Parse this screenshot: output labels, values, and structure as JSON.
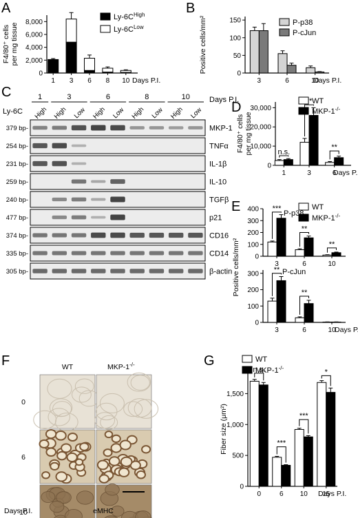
{
  "panels": {
    "A": "A",
    "B": "B",
    "C": "C",
    "D": "D",
    "E": "E",
    "F": "F",
    "G": "G"
  },
  "colors": {
    "black": "#000000",
    "white": "#ffffff",
    "light_gray": "#d4d4d4",
    "dark_gray": "#7a7a7a",
    "gel_bg": "#ececec",
    "band": "#444444",
    "ihc_light": "#e8e2d6",
    "ihc_brown": "#7a5634"
  },
  "chart_data": [
    {
      "id": "A",
      "type": "bar",
      "stacked": true,
      "ylabel_lines": [
        "F4/80⁺ cells",
        "per mg tissue"
      ],
      "xlabel": "Days P.I.",
      "categories": [
        "1",
        "3",
        "6",
        "8",
        "10"
      ],
      "yticks": [
        "0",
        "2,000",
        "4,000",
        "6,000",
        "8,000"
      ],
      "ylim": [
        0,
        9000
      ],
      "series": [
        {
          "name": "Ly-6C",
          "sup": "High",
          "color": "#000000",
          "values": [
            2100,
            4800,
            400,
            150,
            100
          ],
          "err": [
            150,
            350,
            100,
            50,
            40
          ]
        },
        {
          "name": "Ly-6C",
          "sup": "Low",
          "color": "#ffffff",
          "values": [
            0,
            3600,
            1900,
            600,
            300
          ],
          "err": [
            0,
            1000,
            500,
            200,
            100
          ]
        }
      ],
      "legend": "top-right"
    },
    {
      "id": "B",
      "type": "bar",
      "ylabel": "Positive cells/mm²",
      "xlabel": "Days P.I.",
      "categories": [
        "3",
        "6",
        "10"
      ],
      "yticks": [
        "0",
        "50",
        "100",
        "150"
      ],
      "ylim": [
        0,
        160
      ],
      "series": [
        {
          "name": "P-p38",
          "color": "#d4d4d4",
          "values": [
            120,
            55,
            15
          ],
          "err": [
            10,
            8,
            5
          ]
        },
        {
          "name": "P-cJun",
          "color": "#7a7a7a",
          "values": [
            120,
            22,
            3
          ],
          "err": [
            20,
            6,
            1
          ]
        }
      ],
      "legend": "top-right"
    },
    {
      "id": "D",
      "type": "bar",
      "ylabel_lines": [
        "F4/80⁺ cells",
        "per mg tissue"
      ],
      "xlabel": "Days P.I.",
      "categories": [
        "1",
        "3",
        "6"
      ],
      "yticks": [
        "0",
        "10,000",
        "20,000",
        "30,000"
      ],
      "ylim": [
        0,
        33000
      ],
      "series": [
        {
          "name": "WT",
          "color": "#ffffff",
          "values": [
            2500,
            12000,
            1500
          ],
          "err": [
            500,
            2000,
            500
          ]
        },
        {
          "name": "MKP-1",
          "sup": "-/-",
          "color": "#000000",
          "values": [
            3000,
            26000,
            4000
          ],
          "err": [
            500,
            4000,
            800
          ]
        }
      ],
      "annotations": [
        {
          "text": "n.s.",
          "group": 0,
          "y": 5000
        },
        {
          "text": "**",
          "group": 1,
          "y": 31500
        },
        {
          "text": "**",
          "group": 2,
          "y": 7500
        }
      ],
      "legend": "top-right"
    },
    {
      "id": "E1",
      "type": "bar",
      "title": "P-p38",
      "categories": [
        "3",
        "6",
        "10"
      ],
      "yticks": [
        "0",
        "100",
        "200",
        "300",
        "400"
      ],
      "ylim": [
        0,
        400
      ],
      "series": [
        {
          "name": "WT",
          "color": "#ffffff",
          "values": [
            120,
            55,
            10
          ],
          "err": [
            8,
            8,
            3
          ]
        },
        {
          "name": "MKP-1",
          "sup": "-/-",
          "color": "#000000",
          "values": [
            320,
            155,
            30
          ],
          "err": [
            30,
            15,
            5
          ]
        }
      ],
      "annotations": [
        {
          "text": "***",
          "group": 0,
          "y": 372
        },
        {
          "text": "**",
          "group": 1,
          "y": 200
        },
        {
          "text": "**",
          "group": 2,
          "y": 70
        }
      ],
      "legend": "top-right"
    },
    {
      "id": "E2",
      "type": "bar",
      "title": "P-cJun",
      "shared_ylabel": "Positive cells/mm²",
      "xlabel": "Days P.I.",
      "categories": [
        "3",
        "6",
        "10"
      ],
      "yticks": [
        "0",
        "100",
        "200",
        "300"
      ],
      "ylim": [
        0,
        320
      ],
      "series": [
        {
          "name": "WT",
          "color": "#ffffff",
          "values": [
            130,
            28,
            2
          ],
          "err": [
            18,
            6,
            1
          ]
        },
        {
          "name": "MKP-1",
          "sup": "-/-",
          "color": "#000000",
          "values": [
            255,
            115,
            2
          ],
          "err": [
            25,
            20,
            1
          ]
        }
      ],
      "annotations": [
        {
          "text": "**",
          "group": 0,
          "y": 300
        },
        {
          "text": "**",
          "group": 1,
          "y": 160
        }
      ]
    },
    {
      "id": "G",
      "type": "bar",
      "ylabel": "Fiber size (μm²)",
      "xlabel": "Days P.I.",
      "categories": [
        "0",
        "6",
        "10",
        "15"
      ],
      "yticks": [
        "0",
        "500",
        "1,000",
        "1,500"
      ],
      "ylim": [
        0,
        1850
      ],
      "series": [
        {
          "name": "WT",
          "color": "#ffffff",
          "values": [
            1700,
            470,
            920,
            1680
          ],
          "err": [
            30,
            15,
            20,
            30
          ]
        },
        {
          "name": "MKP-1",
          "sup": "-/-",
          "color": "#000000",
          "values": [
            1640,
            340,
            800,
            1520
          ],
          "err": [
            40,
            10,
            20,
            70
          ]
        }
      ],
      "annotations": [
        {
          "text": "n.s.",
          "group": 0,
          "y": 1830
        },
        {
          "text": "***",
          "group": 1,
          "y": 640
        },
        {
          "text": "***",
          "group": 2,
          "y": 1080
        },
        {
          "text": "*",
          "group": 3,
          "y": 1790
        }
      ],
      "legend": "top-left"
    }
  ],
  "gel": {
    "days_label": "Days P.I.",
    "ly6c_label": "Ly-6C",
    "days": [
      "1",
      "3",
      "6",
      "8",
      "10"
    ],
    "lanes": [
      "High",
      "High",
      "Low",
      "High",
      "Low",
      "High",
      "Low",
      "High",
      "Low"
    ],
    "lane_day_groups": [
      [
        0
      ],
      [
        1,
        2
      ],
      [
        3,
        4
      ],
      [
        5,
        6
      ],
      [
        7,
        8
      ]
    ],
    "rows": [
      {
        "size": "379 bp-",
        "gene": "MKP-1",
        "intensity": [
          0.5,
          0.55,
          0.9,
          1.0,
          0.95,
          0.35,
          0.35,
          0.3,
          0.35
        ]
      },
      {
        "size": "254 bp-",
        "gene": "TNFα",
        "intensity": [
          0.85,
          0.95,
          0.15,
          0,
          0,
          0,
          0,
          0,
          0
        ]
      },
      {
        "size": "231 bp-",
        "gene": "IL-1β",
        "intensity": [
          0.85,
          0.9,
          0.15,
          0,
          0,
          0,
          0,
          0,
          0
        ]
      },
      {
        "size": "259 bp-",
        "gene": "IL-10",
        "intensity": [
          0,
          0,
          0.6,
          0.2,
          0.75,
          0,
          0,
          0,
          0
        ]
      },
      {
        "size": "240 bp-",
        "gene": "TGFβ",
        "intensity": [
          0,
          0.45,
          0.55,
          0.2,
          1.0,
          0,
          0,
          0,
          0
        ]
      },
      {
        "size": "477 bp-",
        "gene": "p21",
        "intensity": [
          0,
          0.45,
          0.55,
          0.15,
          1.0,
          0,
          0,
          0,
          0
        ]
      },
      {
        "size": "374 bp-",
        "gene": "CD16",
        "intensity": [
          0.6,
          0.6,
          0.6,
          0.95,
          0.95,
          0.85,
          0.85,
          0.85,
          0.85
        ]
      },
      {
        "size": "335 bp-",
        "gene": "CD14",
        "intensity": [
          0.6,
          0.6,
          0.6,
          0.6,
          0.6,
          0.6,
          0.6,
          0.6,
          0.6
        ]
      },
      {
        "size": "305 bp-",
        "gene": "β-actin",
        "intensity": [
          0.7,
          0.7,
          0.7,
          0.7,
          0.7,
          0.7,
          0.7,
          0.7,
          0.7
        ]
      }
    ]
  },
  "histology": {
    "col_labels": [
      "WT",
      "MKP-1"
    ],
    "col_label_sup": "-/-",
    "rows": [
      "0",
      "6",
      "10"
    ],
    "bottom_left": "Days P.I.",
    "bottom_center": "eMHC"
  }
}
